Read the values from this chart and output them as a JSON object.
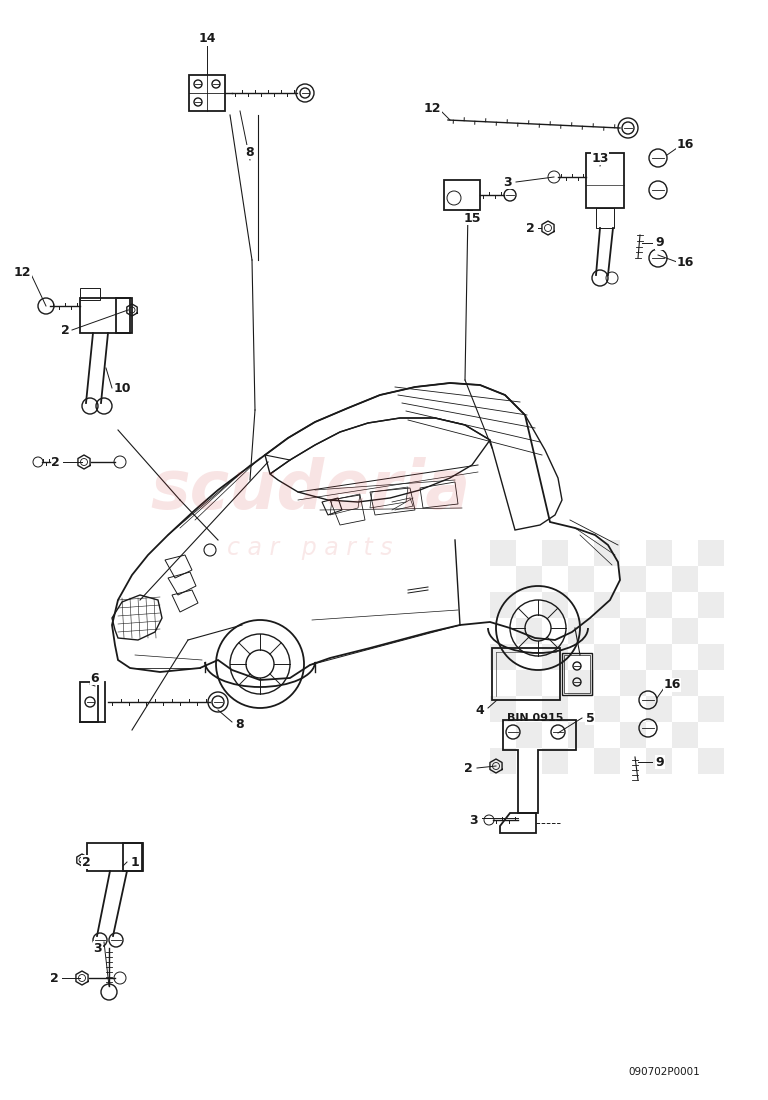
{
  "bg_color": "#ffffff",
  "line_color": "#1a1a1a",
  "diagram_id": "090702P0001"
}
